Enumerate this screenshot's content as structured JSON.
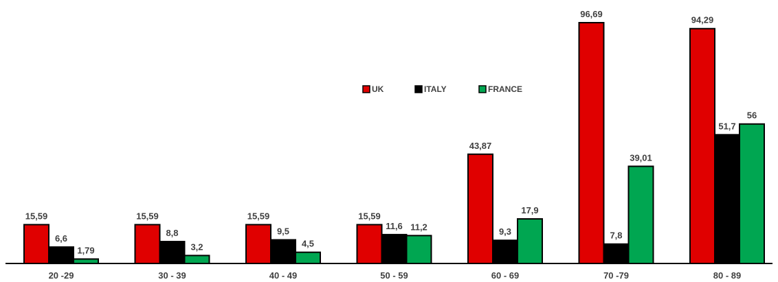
{
  "chart_data": {
    "type": "bar",
    "title": "",
    "xlabel": "",
    "ylabel": "",
    "ylim": [
      0,
      100
    ],
    "grid": false,
    "legend_position": "top-center",
    "categories": [
      "20 -29",
      "30 - 39",
      "40 - 49",
      "50 - 59",
      "60 - 69",
      "70 -79",
      "80 - 89"
    ],
    "series": [
      {
        "name": "UK",
        "color": "#e00000",
        "values": [
          15.59,
          15.59,
          15.59,
          15.59,
          43.87,
          96.69,
          94.29
        ],
        "labels": [
          "15,59",
          "15,59",
          "15,59",
          "15,59",
          "43,87",
          "96,69",
          "94,29"
        ]
      },
      {
        "name": "ITALY",
        "color": "#000000",
        "values": [
          6.6,
          8.8,
          9.5,
          11.6,
          9.3,
          7.8,
          51.7
        ],
        "labels": [
          "6,6",
          "8,8",
          "9,5",
          "11,6",
          "9,3",
          "7,8",
          "51,7"
        ]
      },
      {
        "name": "FRANCE",
        "color": "#00a651",
        "values": [
          1.79,
          3.2,
          4.5,
          11.2,
          17.9,
          39.01,
          56
        ],
        "labels": [
          "1,79",
          "3,2",
          "4,5",
          "11,2",
          "17,9",
          "39,01",
          "56"
        ]
      }
    ]
  }
}
